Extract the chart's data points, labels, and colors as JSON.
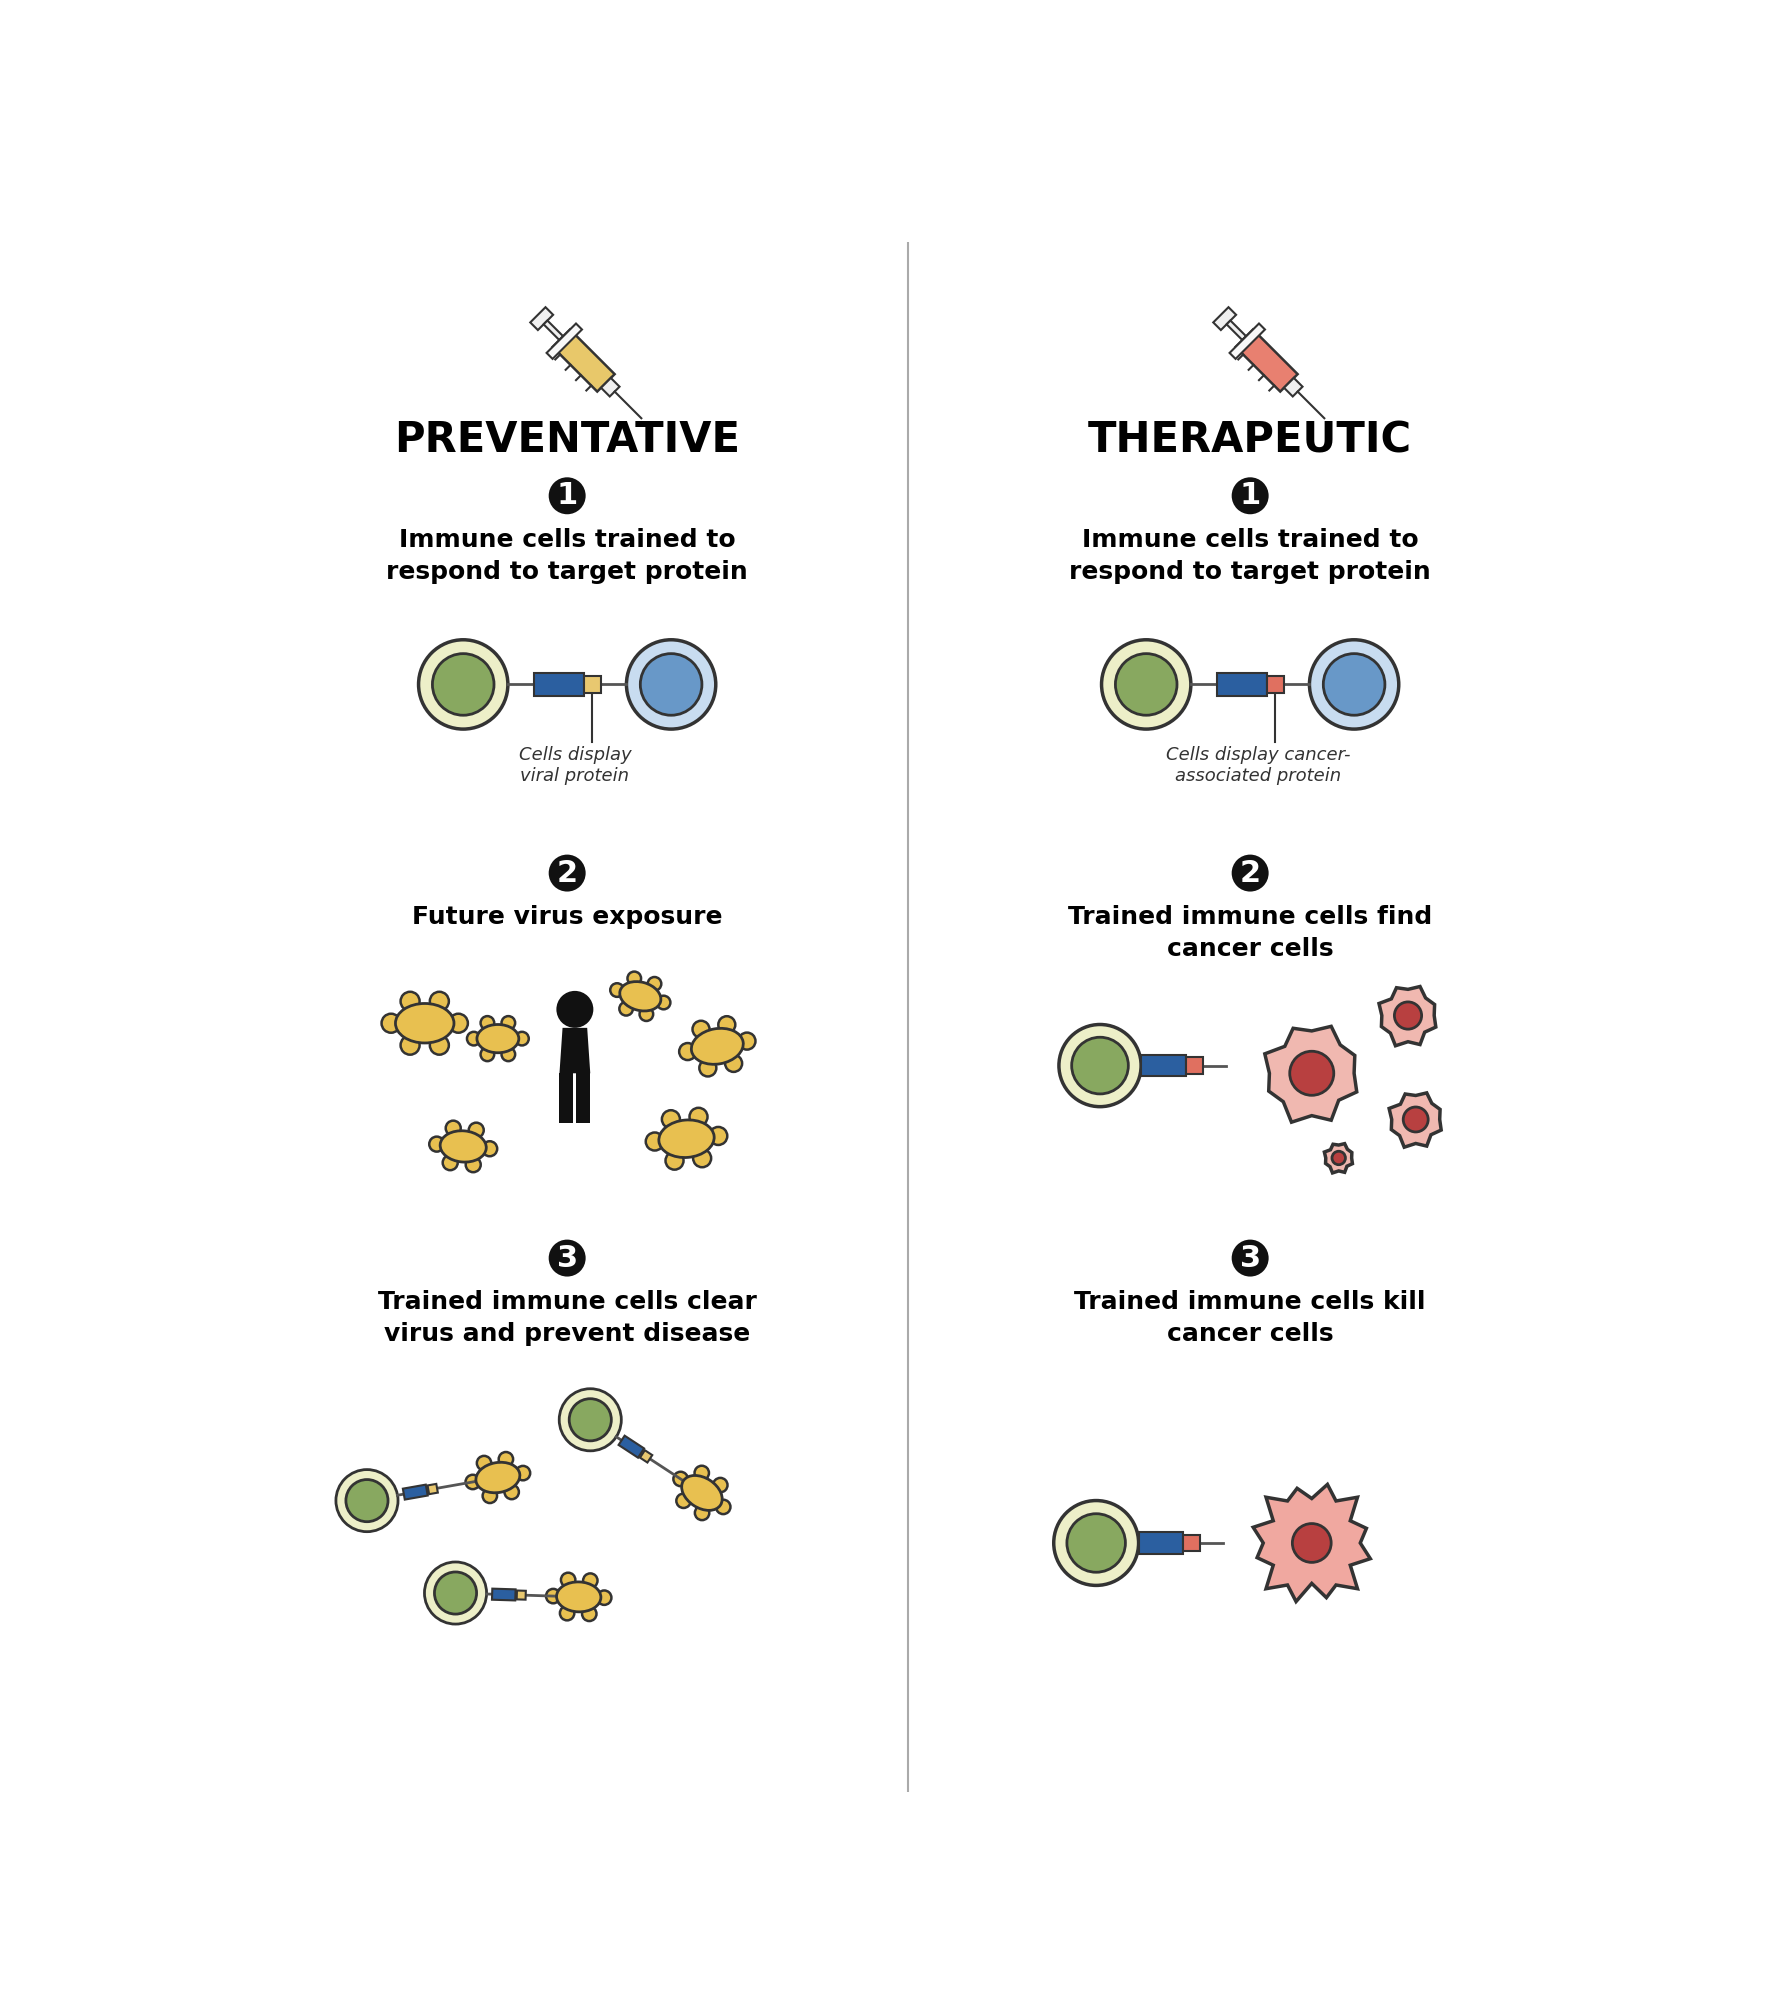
{
  "bg_color": "#ffffff",
  "divider_color": "#aaaaaa",
  "left_title": "PREVENTATIVE",
  "right_title": "THERAPEUTIC",
  "title_fontsize": 30,
  "step_text_fontsize": 18,
  "annotation_fontsize": 13,
  "left_annotation1": "Cells display\nviral protein",
  "right_annotation1": "Cells display cancer-\nassociated protein",
  "syringe_left_color": "#E8C86A",
  "syringe_right_color": "#E88070",
  "cell_green_outer": "#EDEFC8",
  "cell_green_inner": "#88A860",
  "cell_blue_outer": "#C8DCF0",
  "cell_blue_inner": "#6898C8",
  "connector_blue": "#2B5FA0",
  "connector_yellow": "#E8C870",
  "connector_pink": "#E07060",
  "virus_color": "#E8C050",
  "virus_outline": "#333333",
  "person_color": "#111111",
  "cancer_cell_outer": "#F0B8B0",
  "cancer_cell_inner": "#B84040",
  "cancer_blob_color": "#F0A8A0",
  "step_number_bg": "#111111",
  "step_number_color": "#ffffff"
}
